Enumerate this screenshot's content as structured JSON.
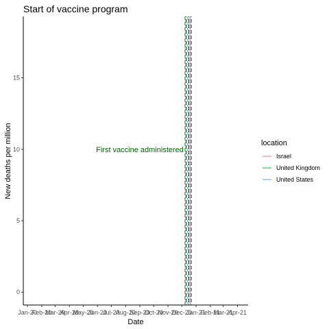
{
  "chart_data": {
    "type": "line",
    "title": "Start of vaccine program",
    "xlabel": "Date",
    "ylabel": "New deaths per million",
    "x_ticks": [
      "Jan-20",
      "Feb-20",
      "Mar-20",
      "Apr-20",
      "May-20",
      "Jun-20",
      "Jul-20",
      "Aug-20",
      "Sep-20",
      "Oct-20",
      "Nov-20",
      "Dec-20",
      "Jan-21",
      "Feb-21",
      "Mar-21",
      "Apr-21"
    ],
    "xlim": [
      "2019-12-23",
      "2021-04-24"
    ],
    "y_ticks": [
      0,
      5,
      10,
      15
    ],
    "ylim": [
      -0.9,
      19.3
    ],
    "grid": false,
    "legend": {
      "title": "location",
      "placement": "right"
    },
    "series": [
      {
        "name": "Israel",
        "color": "#F8766D",
        "values": []
      },
      {
        "name": "United Kingdom",
        "color": "#00BA38",
        "values": []
      },
      {
        "name": "United States",
        "color": "#619CFF",
        "values": []
      }
    ],
    "vlines": [
      {
        "date": "2020-12-08",
        "color": "#00BA38",
        "linetype": "dashed"
      },
      {
        "date": "2020-12-14",
        "color": "#619CFF",
        "linetype": "dashed"
      },
      {
        "date": "2020-12-19",
        "color": "#F8766D",
        "linetype": "dashed"
      }
    ],
    "annotation": {
      "text": "First vaccine administered",
      "x": "2020-12-08",
      "y": 10,
      "color": "#006400"
    }
  }
}
